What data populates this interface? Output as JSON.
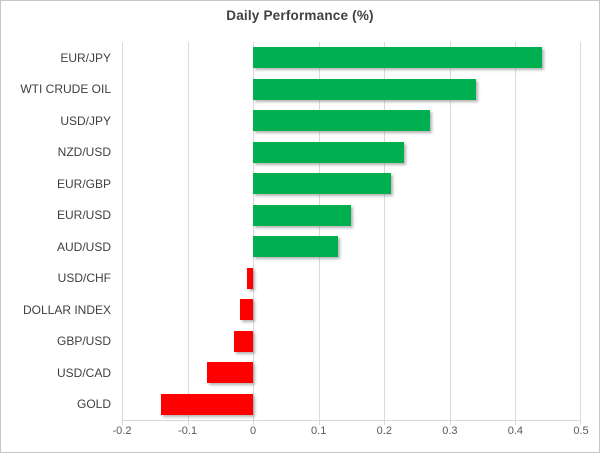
{
  "chart_data": {
    "type": "bar",
    "orientation": "horizontal",
    "title": "Daily Performance (%)",
    "categories": [
      "EUR/JPY",
      "WTI CRUDE OIL",
      "USD/JPY",
      "NZD/USD",
      "EUR/GBP",
      "EUR/USD",
      "AUD/USD",
      "USD/CHF",
      "DOLLAR INDEX",
      "GBP/USD",
      "USD/CAD",
      "GOLD"
    ],
    "values": [
      0.44,
      0.34,
      0.27,
      0.23,
      0.21,
      0.15,
      0.13,
      -0.01,
      -0.02,
      -0.03,
      -0.07,
      -0.14
    ],
    "xlim": [
      -0.2,
      0.5
    ],
    "x_ticks": [
      -0.2,
      -0.1,
      0,
      0.1,
      0.2,
      0.3,
      0.4,
      0.5
    ],
    "x_tick_labels": [
      "-0.2",
      "-0.1",
      "0",
      "0.1",
      "0.2",
      "0.3",
      "0.4",
      "0.5"
    ],
    "grid": true,
    "legend": "none",
    "positive_color": "#00B050",
    "negative_color": "#FF0000",
    "gridline_color": "#D9D9D9",
    "title_color": "#404040",
    "label_color": "#404040",
    "tick_color": "#595959"
  }
}
